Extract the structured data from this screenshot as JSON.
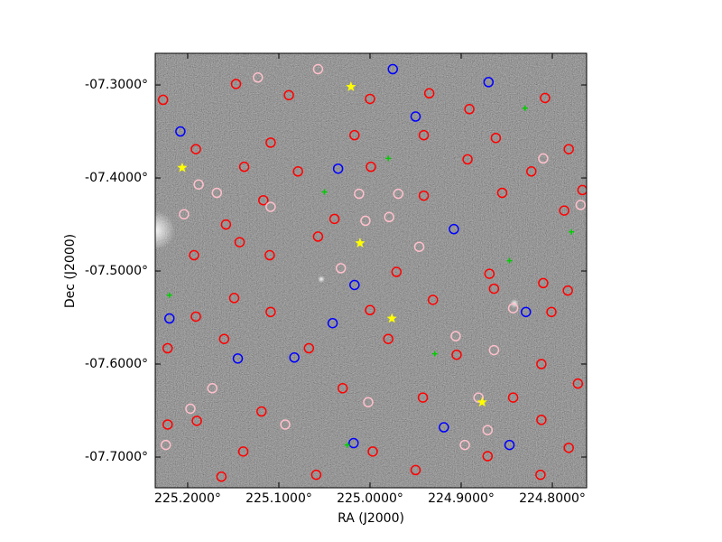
{
  "chart_data": {
    "type": "scatter",
    "xlabel": "RA (J2000)",
    "ylabel": "Dec (J2000)",
    "xlim": [
      225.2356,
      224.7624
    ],
    "ylim": [
      -7.733,
      -7.266
    ],
    "xticks": [
      {
        "value": 225.2,
        "label": "225.2000°"
      },
      {
        "value": 225.1,
        "label": "225.1000°"
      },
      {
        "value": 225.0,
        "label": "225.0000°"
      },
      {
        "value": 224.9,
        "label": "224.9000°"
      },
      {
        "value": 224.8,
        "label": "224.8000°"
      }
    ],
    "yticks": [
      {
        "value": -7.3,
        "label": "-07.3000°"
      },
      {
        "value": -7.4,
        "label": "-07.4000°"
      },
      {
        "value": -7.5,
        "label": "-07.5000°"
      },
      {
        "value": -7.6,
        "label": "-07.6000°"
      },
      {
        "value": -7.7,
        "label": "-07.7000°"
      }
    ],
    "series": [
      {
        "color": "#ff0000",
        "marker": "circle",
        "x": [
          225.227,
          225.147,
          225.089,
          225.0,
          224.935,
          224.891,
          224.808,
          224.782,
          224.862,
          224.941,
          225.017,
          225.109,
          225.191,
          225.138,
          225.079,
          224.999,
          224.893,
          224.823,
          224.767,
          224.787,
          224.855,
          224.941,
          225.039,
          225.117,
          225.158,
          225.143,
          225.193,
          225.11,
          225.057,
          224.971,
          224.869,
          224.81,
          224.783,
          224.801,
          224.864,
          224.931,
          225.0,
          225.109,
          225.191,
          225.149,
          225.222,
          225.16,
          225.067,
          224.98,
          224.905,
          224.812,
          224.772,
          224.843,
          224.942,
          225.03,
          225.119,
          225.19,
          225.222,
          225.139,
          225.059,
          224.997,
          224.95,
          224.871,
          224.813,
          224.782,
          225.163,
          224.812
        ],
        "y": [
          -7.316,
          -7.299,
          -7.311,
          -7.315,
          -7.309,
          -7.326,
          -7.314,
          -7.369,
          -7.357,
          -7.354,
          -7.354,
          -7.362,
          -7.369,
          -7.388,
          -7.393,
          -7.388,
          -7.38,
          -7.393,
          -7.413,
          -7.435,
          -7.416,
          -7.419,
          -7.444,
          -7.424,
          -7.45,
          -7.469,
          -7.483,
          -7.483,
          -7.463,
          -7.501,
          -7.503,
          -7.513,
          -7.521,
          -7.544,
          -7.519,
          -7.531,
          -7.542,
          -7.544,
          -7.549,
          -7.529,
          -7.583,
          -7.573,
          -7.583,
          -7.573,
          -7.59,
          -7.6,
          -7.621,
          -7.636,
          -7.636,
          -7.626,
          -7.651,
          -7.661,
          -7.665,
          -7.694,
          -7.719,
          -7.694,
          -7.714,
          -7.699,
          -7.719,
          -7.69,
          -7.721,
          -7.66
        ]
      },
      {
        "color": "#ffc0cb",
        "marker": "circle",
        "x": [
          225.123,
          225.057,
          225.204,
          225.188,
          225.168,
          225.109,
          225.012,
          225.005,
          224.979,
          224.969,
          225.032,
          224.946,
          224.864,
          224.906,
          224.843,
          224.881,
          224.871,
          224.896,
          225.002,
          225.224,
          225.197,
          224.81,
          224.769,
          225.173,
          225.093
        ],
        "y": [
          -7.292,
          -7.283,
          -7.439,
          -7.407,
          -7.416,
          -7.431,
          -7.417,
          -7.446,
          -7.442,
          -7.417,
          -7.497,
          -7.474,
          -7.585,
          -7.57,
          -7.54,
          -7.636,
          -7.671,
          -7.687,
          -7.641,
          -7.687,
          -7.648,
          -7.379,
          -7.429,
          -7.626,
          -7.665
        ]
      },
      {
        "color": "#0000ff",
        "marker": "circle",
        "x": [
          224.975,
          224.87,
          225.208,
          225.035,
          224.95,
          224.908,
          225.017,
          225.041,
          225.22,
          225.145,
          225.083,
          225.018,
          224.919,
          224.829,
          224.847
        ],
        "y": [
          -7.283,
          -7.297,
          -7.35,
          -7.39,
          -7.334,
          -7.455,
          -7.515,
          -7.556,
          -7.551,
          -7.594,
          -7.593,
          -7.685,
          -7.668,
          -7.544,
          -7.687
        ]
      },
      {
        "color": "#00cc00",
        "marker": "plus",
        "x": [
          224.83,
          225.05,
          225.22,
          224.847,
          224.98,
          224.779,
          225.025,
          224.929
        ],
        "y": [
          -7.325,
          -7.415,
          -7.526,
          -7.489,
          -7.379,
          -7.458,
          -7.687,
          -7.589
        ]
      },
      {
        "color": "#ffff00",
        "marker": "star",
        "x": [
          225.021,
          225.206,
          225.011,
          224.976,
          224.877
        ],
        "y": [
          -7.302,
          -7.389,
          -7.47,
          -7.551,
          -7.641
        ]
      }
    ]
  }
}
